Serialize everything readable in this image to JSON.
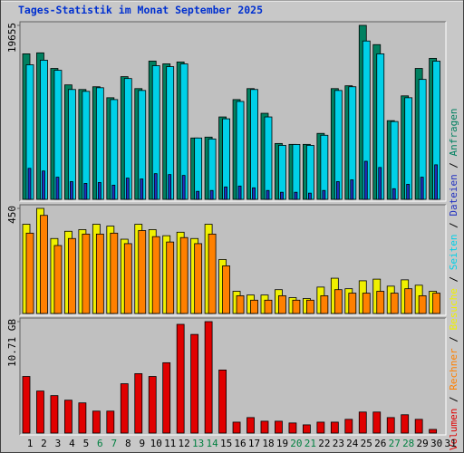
{
  "legend_separator": " / ",
  "chart_data": [
    {
      "type": "bar",
      "title": "Tages-Statistik im Monat September 2025",
      "ylim": [
        0,
        19655
      ],
      "yticks": [
        19655
      ],
      "series": [
        {
          "name": "Anfragen",
          "color": "#008060",
          "values": [
            16440,
            16550,
            14790,
            12930,
            12410,
            12720,
            11480,
            13860,
            12510,
            15620,
            15310,
            15520,
            6930,
            7030,
            9310,
            11270,
            12510,
            9720,
            6310,
            6210,
            6210,
            7450,
            12510,
            12830,
            19655,
            17480,
            8890,
            11690,
            14790,
            15930,
            null
          ]
        },
        {
          "name": "Dateien",
          "color": "#2030c0",
          "values": [
            3500,
            3200,
            2500,
            2000,
            1800,
            1900,
            1600,
            2400,
            2300,
            2900,
            2800,
            2700,
            900,
            1000,
            1400,
            1500,
            1300,
            1000,
            800,
            800,
            700,
            1000,
            2000,
            2200,
            4300,
            3600,
            1200,
            1700,
            2500,
            3900,
            null
          ]
        },
        {
          "name": "Seiten",
          "color": "#00d0e8",
          "values": [
            15200,
            15720,
            14580,
            12410,
            12200,
            12610,
            11270,
            13650,
            12300,
            15100,
            14990,
            15300,
            6930,
            6820,
            9100,
            11060,
            12410,
            9310,
            6100,
            6200,
            6100,
            7240,
            12300,
            12720,
            17890,
            16440,
            8790,
            11480,
            13550,
            15610,
            null
          ]
        }
      ]
    },
    {
      "type": "bar",
      "ylim": [
        0,
        450
      ],
      "yticks": [
        450
      ],
      "series": [
        {
          "name": "Besuche",
          "color": "#f0f000",
          "values": [
            382,
            450,
            321,
            352,
            359,
            382,
            374,
            318,
            382,
            359,
            333,
            348,
            321,
            382,
            231,
            95,
            79,
            79,
            102,
            68,
            64,
            113,
            151,
            106,
            140,
            147,
            117,
            144,
            121,
            95,
            null
          ]
        },
        {
          "name": "Rechner",
          "color": "#ff8000",
          "values": [
            344,
            420,
            291,
            321,
            340,
            340,
            344,
            299,
            355,
            329,
            306,
            325,
            299,
            340,
            204,
            76,
            57,
            57,
            76,
            57,
            57,
            76,
            102,
            87,
            87,
            95,
            87,
            106,
            76,
            87,
            null
          ]
        }
      ]
    },
    {
      "type": "bar",
      "ylim": [
        0,
        10.71
      ],
      "yticks": [
        {
          "value": 10.71,
          "label": "10.71 GB"
        }
      ],
      "categories": [
        "1",
        "2",
        "3",
        "4",
        "5",
        "6",
        "7",
        "8",
        "9",
        "10",
        "11",
        "12",
        "13",
        "14",
        "15",
        "16",
        "17",
        "18",
        "19",
        "20",
        "21",
        "22",
        "23",
        "24",
        "25",
        "26",
        "27",
        "28",
        "29",
        "30",
        "31"
      ],
      "category_colors": [
        "#000000",
        "#000000",
        "#000000",
        "#000000",
        "#000000",
        "#008040",
        "#008040",
        "#000000",
        "#000000",
        "#000000",
        "#000000",
        "#000000",
        "#008040",
        "#008040",
        "#000000",
        "#000000",
        "#000000",
        "#000000",
        "#000000",
        "#008040",
        "#008040",
        "#000000",
        "#000000",
        "#000000",
        "#000000",
        "#000000",
        "#008040",
        "#008040",
        "#000000",
        "#000000",
        "#000000"
      ],
      "series": [
        {
          "name": "Volumen",
          "color": "#e00000",
          "values": [
            5.44,
            4.04,
            3.6,
            3.16,
            2.9,
            2.11,
            2.11,
            4.74,
            5.71,
            5.44,
            6.76,
            10.45,
            9.48,
            10.71,
            6.06,
            1.05,
            1.49,
            1.14,
            1.14,
            0.97,
            0.79,
            1.05,
            1.05,
            1.32,
            2.02,
            2.02,
            1.49,
            1.76,
            1.32,
            0.35,
            null
          ]
        }
      ]
    }
  ]
}
